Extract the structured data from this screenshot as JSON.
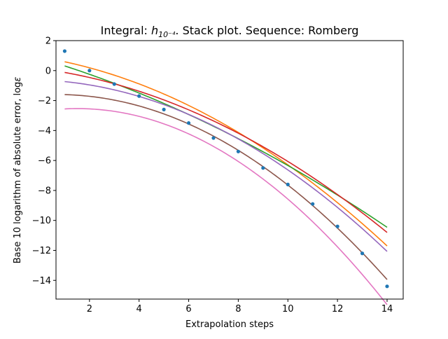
{
  "chart_data": {
    "type": "line",
    "title_prefix": "Integral: ",
    "title_math_base": "h",
    "title_math_sub": "10⁻⁴",
    "title_suffix": ". Stack plot. Sequence: Romberg",
    "xlabel": "Extrapolation steps",
    "ylabel_prefix": "Base 10 logarithm of absolute error, log",
    "ylabel_math": "ε",
    "xlim": [
      0.65,
      14.65
    ],
    "ylim": [
      -15.25,
      2.0
    ],
    "xticks": [
      2,
      4,
      6,
      8,
      10,
      12,
      14
    ],
    "yticks": [
      2,
      0,
      -2,
      -4,
      -6,
      -8,
      -10,
      -12,
      -14
    ],
    "scatter": {
      "color": "#1f77b4",
      "points": [
        [
          1,
          1.3
        ],
        [
          2,
          0.0
        ],
        [
          3,
          -0.9
        ],
        [
          4,
          -1.7
        ],
        [
          5,
          -2.6
        ],
        [
          6,
          -3.5
        ],
        [
          7,
          -4.5
        ],
        [
          8,
          -5.4
        ],
        [
          9,
          -6.5
        ],
        [
          10,
          -7.6
        ],
        [
          11,
          -8.9
        ],
        [
          12,
          -10.4
        ],
        [
          13,
          -12.2
        ],
        [
          14,
          -14.4
        ]
      ]
    },
    "fits": [
      {
        "color": "#ff7f0e",
        "a": -0.0453,
        "b": -0.266,
        "c": 0.9
      },
      {
        "color": "#2ca02c",
        "a": -0.0225,
        "b": -0.491,
        "c": 0.825
      },
      {
        "color": "#d62728",
        "a": -0.0403,
        "b": -0.217,
        "c": 0.134
      },
      {
        "color": "#9467bd",
        "a": -0.0542,
        "b": -0.059,
        "c": -0.621
      },
      {
        "color": "#8c564b",
        "a": -0.0697,
        "b": 0.096,
        "c": -1.63
      },
      {
        "color": "#e377c2",
        "a": -0.084,
        "b": 0.255,
        "c": -2.73
      }
    ],
    "grid": false,
    "legend": false
  }
}
